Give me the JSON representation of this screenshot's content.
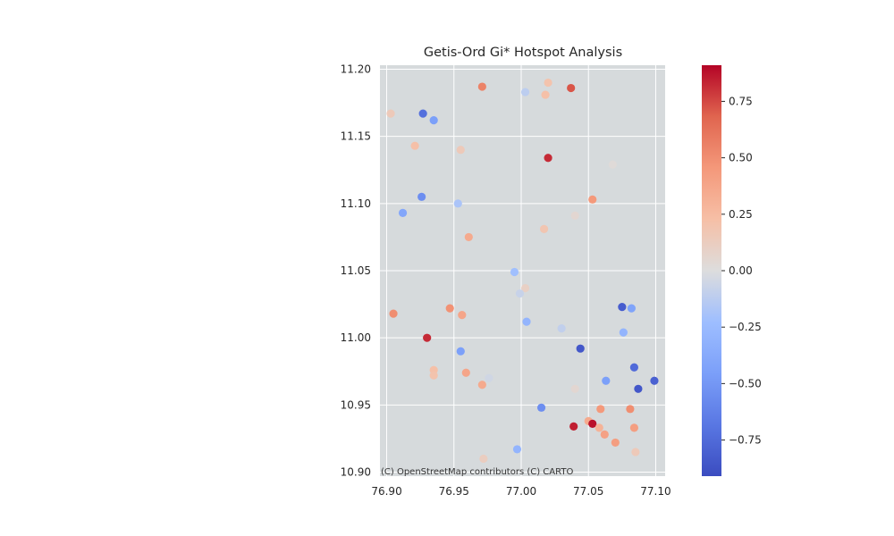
{
  "chart_data": {
    "type": "scatter",
    "title": "Getis-Ord Gi* Hotspot Analysis",
    "xlabel": "",
    "ylabel": "",
    "xlim": [
      76.895,
      77.107
    ],
    "ylim": [
      10.897,
      11.203
    ],
    "xticks": [
      76.9,
      76.95,
      77.0,
      77.05,
      77.1
    ],
    "xtick_labels": [
      "76.90",
      "76.95",
      "77.00",
      "77.05",
      "77.10"
    ],
    "yticks": [
      10.9,
      10.95,
      11.0,
      11.05,
      11.1,
      11.15,
      11.2
    ],
    "ytick_labels": [
      "10.90",
      "10.95",
      "11.00",
      "11.05",
      "11.10",
      "11.15",
      "11.20"
    ],
    "grid": true,
    "basemap": "light gray tiles",
    "attribution": "(C) OpenStreetMap contributors (C) CARTO",
    "colormap": "coolwarm",
    "color_range": [
      -0.91,
      0.91
    ],
    "colorbar_ticks": [
      0.75,
      0.5,
      0.25,
      0.0,
      -0.25,
      -0.5,
      -0.75
    ],
    "colorbar_tick_labels": [
      "0.75",
      "0.50",
      "0.25",
      "0.00",
      "−0.25",
      "−0.50",
      "−0.75"
    ],
    "points": [
      {
        "x": 76.903,
        "y": 11.167,
        "value": 0.15
      },
      {
        "x": 76.927,
        "y": 11.167,
        "value": -0.72
      },
      {
        "x": 76.935,
        "y": 11.162,
        "value": -0.45
      },
      {
        "x": 76.971,
        "y": 11.187,
        "value": 0.55
      },
      {
        "x": 77.003,
        "y": 11.183,
        "value": -0.12
      },
      {
        "x": 77.018,
        "y": 11.181,
        "value": 0.22
      },
      {
        "x": 77.02,
        "y": 11.19,
        "value": 0.2
      },
      {
        "x": 77.037,
        "y": 11.186,
        "value": 0.72
      },
      {
        "x": 76.921,
        "y": 11.143,
        "value": 0.22
      },
      {
        "x": 76.955,
        "y": 11.14,
        "value": 0.15
      },
      {
        "x": 77.02,
        "y": 11.134,
        "value": 0.82
      },
      {
        "x": 77.068,
        "y": 11.129,
        "value": 0.02
      },
      {
        "x": 76.926,
        "y": 11.105,
        "value": -0.55
      },
      {
        "x": 76.912,
        "y": 11.093,
        "value": -0.4
      },
      {
        "x": 76.953,
        "y": 11.1,
        "value": -0.18
      },
      {
        "x": 77.053,
        "y": 11.103,
        "value": 0.45
      },
      {
        "x": 77.04,
        "y": 11.091,
        "value": 0.05
      },
      {
        "x": 77.017,
        "y": 11.081,
        "value": 0.18
      },
      {
        "x": 76.961,
        "y": 11.075,
        "value": 0.35
      },
      {
        "x": 76.995,
        "y": 11.049,
        "value": -0.22
      },
      {
        "x": 77.003,
        "y": 11.037,
        "value": 0.1
      },
      {
        "x": 76.999,
        "y": 11.033,
        "value": -0.08
      },
      {
        "x": 76.905,
        "y": 11.018,
        "value": 0.5
      },
      {
        "x": 76.947,
        "y": 11.022,
        "value": 0.48
      },
      {
        "x": 76.956,
        "y": 11.017,
        "value": 0.38
      },
      {
        "x": 77.004,
        "y": 11.012,
        "value": -0.3
      },
      {
        "x": 77.03,
        "y": 11.007,
        "value": -0.1
      },
      {
        "x": 77.075,
        "y": 11.023,
        "value": -0.82
      },
      {
        "x": 77.082,
        "y": 11.022,
        "value": -0.42
      },
      {
        "x": 77.076,
        "y": 11.004,
        "value": -0.3
      },
      {
        "x": 76.93,
        "y": 11.0,
        "value": 0.82
      },
      {
        "x": 77.044,
        "y": 10.992,
        "value": -0.85
      },
      {
        "x": 76.955,
        "y": 10.99,
        "value": -0.45
      },
      {
        "x": 76.935,
        "y": 10.976,
        "value": 0.22
      },
      {
        "x": 76.935,
        "y": 10.972,
        "value": 0.2
      },
      {
        "x": 76.959,
        "y": 10.974,
        "value": 0.38
      },
      {
        "x": 76.976,
        "y": 10.97,
        "value": -0.05
      },
      {
        "x": 76.971,
        "y": 10.965,
        "value": 0.35
      },
      {
        "x": 77.04,
        "y": 10.962,
        "value": 0.05
      },
      {
        "x": 77.084,
        "y": 10.978,
        "value": -0.75
      },
      {
        "x": 77.063,
        "y": 10.968,
        "value": -0.45
      },
      {
        "x": 77.087,
        "y": 10.962,
        "value": -0.85
      },
      {
        "x": 77.099,
        "y": 10.968,
        "value": -0.8
      },
      {
        "x": 77.015,
        "y": 10.948,
        "value": -0.55
      },
      {
        "x": 77.059,
        "y": 10.947,
        "value": 0.45
      },
      {
        "x": 77.081,
        "y": 10.947,
        "value": 0.5
      },
      {
        "x": 77.05,
        "y": 10.938,
        "value": 0.35
      },
      {
        "x": 77.053,
        "y": 10.936,
        "value": 0.88
      },
      {
        "x": 77.039,
        "y": 10.934,
        "value": 0.85
      },
      {
        "x": 77.058,
        "y": 10.933,
        "value": 0.3
      },
      {
        "x": 77.062,
        "y": 10.928,
        "value": 0.4
      },
      {
        "x": 77.084,
        "y": 10.933,
        "value": 0.42
      },
      {
        "x": 77.07,
        "y": 10.922,
        "value": 0.42
      },
      {
        "x": 76.997,
        "y": 10.917,
        "value": -0.3
      },
      {
        "x": 77.085,
        "y": 10.915,
        "value": 0.15
      },
      {
        "x": 76.972,
        "y": 10.91,
        "value": 0.12
      }
    ]
  }
}
